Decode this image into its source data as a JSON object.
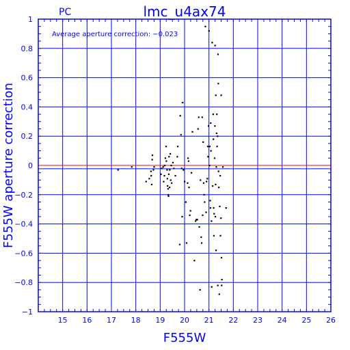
{
  "chart_data": {
    "type": "scatter",
    "title": "lmc_u4ax74",
    "subtitle": "PC",
    "annotation": "Average aperture correction: −0.023",
    "xlabel": "F555W",
    "ylabel": "F555W aperture correction",
    "xlim": [
      14,
      26
    ],
    "ylim": [
      -1,
      1
    ],
    "x_ticks": [
      15,
      16,
      17,
      18,
      19,
      20,
      21,
      22,
      23,
      24,
      25,
      26
    ],
    "y_ticks": [
      -1,
      -0.8,
      -0.6,
      -0.4,
      -0.2,
      0,
      0.2,
      0.4,
      0.6,
      0.8,
      1
    ],
    "y_tick_labels": [
      "−1",
      "−0.8",
      "−0.6",
      "−0.4",
      "−0.2",
      "0",
      "0.2",
      "0.4",
      "0.6",
      "0.8",
      "1"
    ],
    "grid": true,
    "reference_lines": [
      {
        "name": "zero",
        "y": 0.0,
        "color": "#ff0000"
      },
      {
        "name": "average",
        "y": -0.023,
        "color": "#0000ff"
      }
    ],
    "colors": {
      "axes": "#0000ff",
      "points": "#000000"
    },
    "points": [
      [
        17.27,
        -0.03
      ],
      [
        17.83,
        -0.01
      ],
      [
        18.42,
        -0.11
      ],
      [
        18.55,
        -0.09
      ],
      [
        18.62,
        -0.04
      ],
      [
        18.63,
        -0.07
      ],
      [
        18.65,
        -0.13
      ],
      [
        18.67,
        0.04
      ],
      [
        18.68,
        0.07
      ],
      [
        18.72,
        -0.03
      ],
      [
        18.75,
        -0.01
      ],
      [
        19.03,
        -0.06
      ],
      [
        19.06,
        -0.02
      ],
      [
        19.12,
        -0.01
      ],
      [
        19.14,
        -0.11
      ],
      [
        19.17,
        -0.07
      ],
      [
        19.18,
        0.0
      ],
      [
        19.21,
        0.05
      ],
      [
        19.24,
        0.13
      ],
      [
        19.25,
        0.03
      ],
      [
        19.28,
        -0.03
      ],
      [
        19.29,
        -0.09
      ],
      [
        19.3,
        -0.14
      ],
      [
        19.32,
        -0.16
      ],
      [
        19.33,
        -0.2
      ],
      [
        19.34,
        -0.21
      ],
      [
        19.35,
        -0.06
      ],
      [
        19.36,
        0.06
      ],
      [
        19.38,
        -0.15
      ],
      [
        19.39,
        -0.03
      ],
      [
        19.41,
        0.08
      ],
      [
        19.43,
        -0.1
      ],
      [
        19.45,
        0.0
      ],
      [
        19.47,
        -0.12
      ],
      [
        19.52,
        0.02
      ],
      [
        19.56,
        -0.02
      ],
      [
        19.62,
        -0.07
      ],
      [
        19.7,
        0.06
      ],
      [
        19.72,
        0.13
      ],
      [
        19.8,
        -0.54
      ],
      [
        19.82,
        0.34
      ],
      [
        19.85,
        0.21
      ],
      [
        19.88,
        -0.02
      ],
      [
        19.9,
        -0.35
      ],
      [
        19.92,
        0.43
      ],
      [
        19.95,
        -0.03
      ],
      [
        20.0,
        -0.11
      ],
      [
        20.05,
        -0.25
      ],
      [
        20.08,
        -0.53
      ],
      [
        20.12,
        -0.12
      ],
      [
        20.14,
        0.05
      ],
      [
        20.16,
        0.03
      ],
      [
        20.18,
        -0.15
      ],
      [
        20.21,
        -0.34
      ],
      [
        20.24,
        -0.31
      ],
      [
        20.28,
        -0.05
      ],
      [
        20.32,
        0.23
      ],
      [
        20.4,
        -0.65
      ],
      [
        20.45,
        -0.38
      ],
      [
        20.48,
        -0.37
      ],
      [
        20.52,
        -0.37
      ],
      [
        20.55,
        0.25
      ],
      [
        20.58,
        0.33
      ],
      [
        20.6,
        -0.42
      ],
      [
        20.63,
        -0.85
      ],
      [
        20.65,
        -0.1
      ],
      [
        20.68,
        -0.49
      ],
      [
        20.7,
        -0.53
      ],
      [
        20.72,
        0.33
      ],
      [
        20.74,
        -0.34
      ],
      [
        20.76,
        0.16
      ],
      [
        20.78,
        -0.12
      ],
      [
        20.8,
        -0.2
      ],
      [
        20.82,
        -0.25
      ],
      [
        20.85,
        0.95
      ],
      [
        20.88,
        -0.32
      ],
      [
        20.9,
        -0.11
      ],
      [
        20.93,
        -0.09
      ],
      [
        20.95,
        0.13
      ],
      [
        20.96,
        0.06
      ],
      [
        20.98,
        0.27
      ],
      [
        21.0,
        0.92
      ],
      [
        21.02,
        0.0
      ],
      [
        21.03,
        0.13
      ],
      [
        21.05,
        -0.24
      ],
      [
        21.06,
        -0.29
      ],
      [
        21.07,
        0.29
      ],
      [
        21.08,
        0.1
      ],
      [
        21.1,
        -0.38
      ],
      [
        21.11,
        -0.83
      ],
      [
        21.13,
        0.84
      ],
      [
        21.15,
        -0.14
      ],
      [
        21.17,
        0.35
      ],
      [
        21.18,
        0.18
      ],
      [
        21.19,
        -0.29
      ],
      [
        21.2,
        -0.48
      ],
      [
        21.21,
        -0.33
      ],
      [
        21.23,
        0.05
      ],
      [
        21.24,
        0.27
      ],
      [
        21.25,
        0.82
      ],
      [
        21.26,
        -0.35
      ],
      [
        21.27,
        -0.13
      ],
      [
        21.28,
        0.48
      ],
      [
        21.29,
        -0.58
      ],
      [
        21.3,
        -0.01
      ],
      [
        21.31,
        0.22
      ],
      [
        21.32,
        0.35
      ],
      [
        21.33,
        0.13
      ],
      [
        21.35,
        0.2
      ],
      [
        21.36,
        -0.82
      ],
      [
        21.37,
        0.76
      ],
      [
        21.38,
        0.56
      ],
      [
        21.39,
        -0.04
      ],
      [
        21.4,
        -0.15
      ],
      [
        21.42,
        -0.88
      ],
      [
        21.44,
        -0.28
      ],
      [
        21.46,
        -0.07
      ],
      [
        21.47,
        -0.48
      ],
      [
        21.49,
        -0.36
      ],
      [
        21.5,
        0.48
      ],
      [
        21.51,
        -0.63
      ],
      [
        21.52,
        -0.82
      ],
      [
        21.53,
        -0.78
      ],
      [
        21.57,
        -0.01
      ],
      [
        21.7,
        -0.29
      ]
    ]
  }
}
